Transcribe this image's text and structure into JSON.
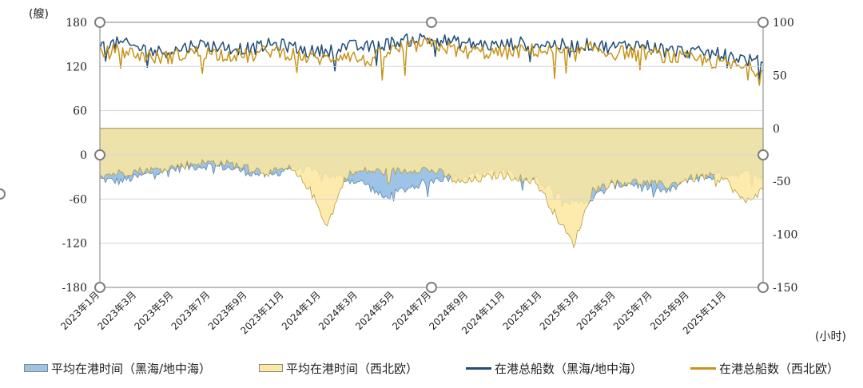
{
  "chart_data": {
    "type": "line",
    "units": {
      "left": "(艘)",
      "right": "(小时)"
    },
    "left_axis": {
      "ylim": [
        -180,
        180
      ],
      "ticks": [
        "180",
        "120",
        "60",
        "0",
        "-60",
        "-120",
        "-180"
      ]
    },
    "right_axis": {
      "ylim": [
        -150,
        100
      ],
      "ticks": [
        "100",
        "50",
        "0",
        "-50",
        "-100",
        "-150"
      ]
    },
    "x_tick_labels": [
      "2023年1月",
      "2023年3月",
      "2023年5月",
      "2023年7月",
      "2023年9月",
      "2023年11月",
      "2024年1月",
      "2024年3月",
      "2024年5月",
      "2024年7月",
      "2024年9月",
      "2024年11月",
      "2025年1月",
      "2025年3月",
      "2025年5月",
      "2025年7月",
      "2025年9月",
      "2025年11月"
    ],
    "x_range_months": 36,
    "colors": {
      "bs_area": "#9dc3e6",
      "nw_area": "#fde8a0",
      "bs_line": "#1f4e79",
      "nw_line": "#c8941a",
      "band": "#dccf9f"
    },
    "series": [
      {
        "name": "平均在港时间（黑海/地中海）",
        "axis": "right",
        "kind": "area",
        "values": [
          -48,
          -50,
          -46,
          -40,
          -38,
          -36,
          -35,
          -38,
          -42,
          -45,
          -37,
          -39,
          -44,
          -48,
          -52,
          -66,
          -58,
          -52,
          -47,
          -46,
          -42,
          -39,
          -45,
          -48,
          -58,
          -72,
          -66,
          -54,
          -52,
          -56,
          -60,
          -48,
          -46,
          -44,
          -42,
          -45
        ]
      },
      {
        "name": "平均在港时间（西北欧）",
        "axis": "right",
        "kind": "area",
        "values": [
          -44,
          -42,
          -40,
          -39,
          -36,
          -33,
          -32,
          -34,
          -38,
          -42,
          -38,
          -55,
          -92,
          -44,
          -40,
          -41,
          -40,
          -38,
          -42,
          -52,
          -48,
          -44,
          -46,
          -50,
          -80,
          -110,
          -58,
          -52,
          -50,
          -52,
          -54,
          -48,
          -45,
          -48,
          -70,
          -58
        ]
      },
      {
        "name": "在港总船数（黑海/地中海）",
        "axis": "left",
        "kind": "line",
        "values": [
          148,
          152,
          146,
          140,
          142,
          150,
          148,
          145,
          144,
          150,
          148,
          140,
          142,
          148,
          146,
          150,
          155,
          158,
          156,
          152,
          150,
          148,
          152,
          150,
          150,
          148,
          150,
          146,
          150,
          148,
          142,
          140,
          138,
          136,
          130,
          125
        ]
      },
      {
        "name": "在港总船数（西北欧）",
        "axis": "left",
        "kind": "line",
        "values": [
          138,
          142,
          136,
          132,
          134,
          140,
          138,
          136,
          134,
          142,
          138,
          132,
          130,
          138,
          126,
          138,
          145,
          150,
          148,
          140,
          140,
          138,
          140,
          142,
          140,
          136,
          145,
          138,
          140,
          138,
          134,
          130,
          128,
          124,
          118,
          115
        ]
      }
    ]
  },
  "legend": [
    {
      "label": "平均在港时间（黑海/地中海）",
      "kind": "area",
      "color": "#9dc3e6"
    },
    {
      "label": "平均在港时间（西北欧）",
      "kind": "area",
      "color": "#fde8a0"
    },
    {
      "label": "在港总船数（黑海/地中海）",
      "kind": "line",
      "color": "#1f4e79"
    },
    {
      "label": "在港总船数（西北欧）",
      "kind": "line",
      "color": "#c8941a"
    }
  ]
}
